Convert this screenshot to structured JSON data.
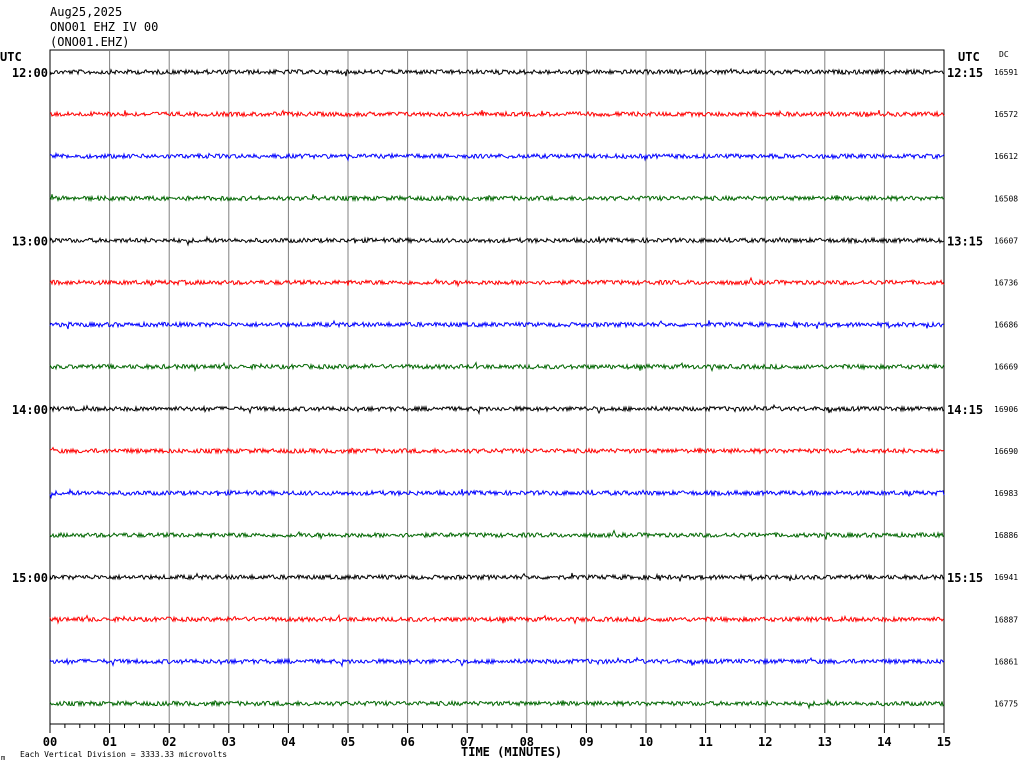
{
  "header": {
    "date": "Aug25,2025",
    "station": "ONO01 EHZ IV 00",
    "channel": "(ONO01.EHZ)"
  },
  "labels": {
    "utc_left": "UTC",
    "utc_right": "UTC",
    "dc": "DC",
    "xlabel": "TIME (MINUTES)",
    "footer_mark": "m",
    "footer": "Each Vertical Division = 3333.33 microvolts"
  },
  "colors": {
    "trace_cycle": [
      "#000000",
      "#ff0000",
      "#0000ff",
      "#006600"
    ],
    "grid": "#808080",
    "background": "#ffffff"
  },
  "chart_data": {
    "type": "line",
    "title": "",
    "xlabel": "TIME (MINUTES)",
    "ylabel": "",
    "xlim": [
      0,
      15
    ],
    "x_ticks": [
      "00",
      "01",
      "02",
      "03",
      "04",
      "05",
      "06",
      "07",
      "08",
      "09",
      "10",
      "11",
      "12",
      "13",
      "14",
      "15"
    ],
    "minutes_per_line": 15,
    "left_time_labels": [
      {
        "row": 0,
        "text": "12:00"
      },
      {
        "row": 4,
        "text": "13:00"
      },
      {
        "row": 8,
        "text": "14:00"
      },
      {
        "row": 12,
        "text": "15:00"
      }
    ],
    "right_time_labels": [
      {
        "row": 0,
        "text": "12:15"
      },
      {
        "row": 4,
        "text": "13:15"
      },
      {
        "row": 8,
        "text": "14:15"
      },
      {
        "row": 12,
        "text": "15:15"
      }
    ],
    "traces": [
      {
        "row": 0,
        "dc": "16591"
      },
      {
        "row": 1,
        "dc": "16572"
      },
      {
        "row": 2,
        "dc": "16612"
      },
      {
        "row": 3,
        "dc": "16508"
      },
      {
        "row": 4,
        "dc": "16607"
      },
      {
        "row": 5,
        "dc": "16736"
      },
      {
        "row": 6,
        "dc": "16686"
      },
      {
        "row": 7,
        "dc": "16669"
      },
      {
        "row": 8,
        "dc": "16906"
      },
      {
        "row": 9,
        "dc": "16690"
      },
      {
        "row": 10,
        "dc": "16983"
      },
      {
        "row": 11,
        "dc": "16886"
      },
      {
        "row": 12,
        "dc": "16941"
      },
      {
        "row": 13,
        "dc": "16887"
      },
      {
        "row": 14,
        "dc": "16861"
      },
      {
        "row": 15,
        "dc": "16775"
      }
    ]
  }
}
